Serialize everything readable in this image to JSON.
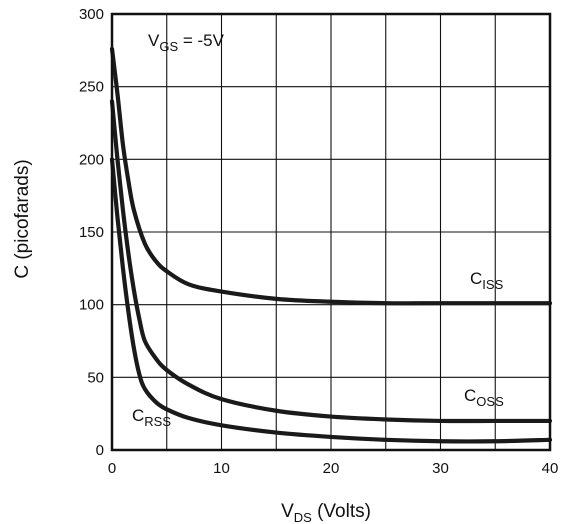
{
  "chart_data": {
    "type": "line",
    "title": "",
    "xlabel": {
      "main": "V",
      "sub": "DS",
      "rest": " (Volts)"
    },
    "ylabel": "C (picofarads)",
    "xlim": [
      0,
      40
    ],
    "ylim": [
      0,
      300
    ],
    "xticks": [
      0,
      10,
      20,
      30,
      40
    ],
    "yticks": [
      0,
      50,
      100,
      150,
      200,
      250,
      300
    ],
    "grid": true,
    "annotations": [
      {
        "main": "V",
        "sub": "GS",
        "rest": " = -5V"
      }
    ],
    "series": [
      {
        "name": {
          "main": "C",
          "sub": "ISS"
        },
        "x": [
          0,
          0.5,
          1,
          1.5,
          2,
          3,
          4,
          5,
          7,
          10,
          15,
          20,
          25,
          30,
          35,
          40
        ],
        "y": [
          276,
          245,
          210,
          185,
          165,
          142,
          130,
          123,
          114,
          109,
          104,
          102,
          101,
          101,
          101,
          101
        ]
      },
      {
        "name": {
          "main": "C",
          "sub": "OSS"
        },
        "x": [
          0,
          0.5,
          1,
          1.5,
          2,
          2.5,
          3,
          4,
          5,
          7,
          10,
          15,
          20,
          25,
          30,
          35,
          40
        ],
        "y": [
          240,
          200,
          165,
          135,
          110,
          90,
          75,
          63,
          55,
          45,
          35,
          27,
          23,
          21,
          20,
          20,
          20
        ]
      },
      {
        "name": {
          "main": "C",
          "sub": "RSS"
        },
        "x": [
          0,
          0.5,
          1,
          1.5,
          2,
          2.5,
          3,
          4,
          5,
          7,
          10,
          15,
          20,
          25,
          30,
          35,
          40
        ],
        "y": [
          200,
          160,
          125,
          95,
          70,
          52,
          42,
          33,
          28,
          22,
          17,
          12,
          9,
          7,
          6,
          6,
          7
        ]
      }
    ]
  }
}
